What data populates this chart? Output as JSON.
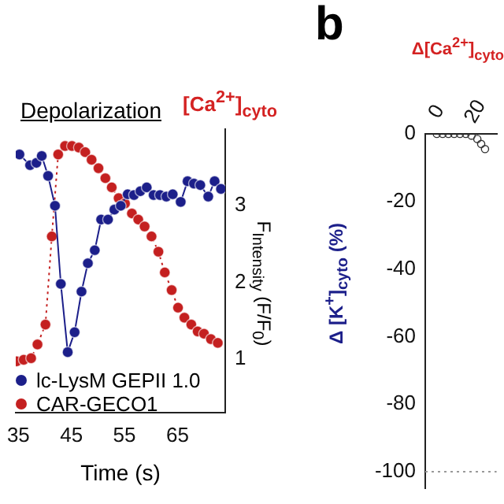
{
  "chart_data": [
    {
      "type": "line",
      "xlabel": "Time (s)",
      "ylabel": "F$_{Intensity}$ (F/F$_{0}$)",
      "annotations": [
        "[Ca$^{2+}$]$_{cyto}$",
        "Depolarization"
      ],
      "xlim": [
        34.5,
        74
      ],
      "xticks": [
        35,
        45,
        55,
        65
      ],
      "ylim": [
        0.3,
        4.0
      ],
      "yticks": [
        1,
        2,
        3
      ],
      "legend": "bottom left",
      "marker": "circle",
      "grid": false,
      "series": [
        {
          "name": "lc-LysM  GEPII 1.0",
          "color": "#1c1f8a",
          "line_style": "solid",
          "x": [
            35.2,
            37.2,
            38.4,
            39.4,
            40.6,
            41.9,
            43.0,
            44.3,
            45.6,
            46.9,
            48.1,
            49.4,
            50.6,
            51.9,
            53.1,
            54.3,
            55.6,
            56.8,
            58.0,
            59.2,
            60.5,
            61.7,
            62.9,
            64.1,
            65.6,
            66.9,
            68.1,
            69.3,
            70.8,
            72.0,
            73.2
          ],
          "values": [
            3.67,
            3.53,
            3.56,
            3.65,
            3.39,
            3.0,
            1.98,
            1.09,
            1.35,
            1.88,
            2.25,
            2.42,
            2.82,
            2.82,
            2.95,
            3.0,
            3.15,
            3.14,
            3.19,
            3.24,
            3.14,
            3.14,
            3.12,
            3.15,
            3.05,
            3.32,
            3.29,
            3.27,
            3.12,
            3.32,
            3.22
          ]
        },
        {
          "name": "CAR-GECO1",
          "color": "#c42020",
          "line_style": "dotted",
          "x": [
            34.7,
            36.0,
            37.4,
            38.6,
            40.1,
            41.3,
            42.5,
            43.8,
            45.1,
            46.4,
            47.6,
            48.8,
            50.1,
            51.4,
            52.6,
            53.9,
            55.1,
            56.4,
            57.6,
            58.8,
            60.1,
            61.4,
            62.6,
            63.9,
            65.1,
            66.3,
            67.6,
            68.8,
            70.0,
            71.3,
            72.6
          ],
          "values": [
            0.97,
            0.99,
            1.01,
            1.19,
            1.45,
            2.6,
            3.67,
            3.78,
            3.78,
            3.76,
            3.7,
            3.6,
            3.49,
            3.36,
            3.24,
            3.1,
            3.03,
            2.9,
            2.82,
            2.73,
            2.6,
            2.4,
            2.13,
            1.9,
            1.67,
            1.54,
            1.45,
            1.36,
            1.33,
            1.26,
            1.21
          ]
        }
      ]
    },
    {
      "type": "scatter",
      "ylabel": "Δ [K$^{+}$]$_{cyto}$ (%)",
      "x2label": "Δ[Ca$^{2+}$]$_{cyto}$",
      "annotations": [
        "b"
      ],
      "xlim": [
        -6,
        31
      ],
      "xticks": [
        0,
        20
      ],
      "ylim": [
        -105,
        0
      ],
      "yticks": [
        0,
        -20,
        -40,
        -60,
        -80,
        -100
      ],
      "marker": "circle",
      "grid": false,
      "ref_lines": [
        {
          "axis": "y",
          "value": -100,
          "color": "#999999",
          "line_style": "dotted"
        }
      ],
      "series": [
        {
          "color": "#333333",
          "x": [
            0,
            3,
            6,
            9,
            12,
            15,
            18,
            21,
            23,
            25
          ],
          "values": [
            0,
            0,
            0,
            0,
            0,
            0,
            -0.5,
            -1.5,
            -3,
            -4.5
          ]
        }
      ]
    }
  ]
}
